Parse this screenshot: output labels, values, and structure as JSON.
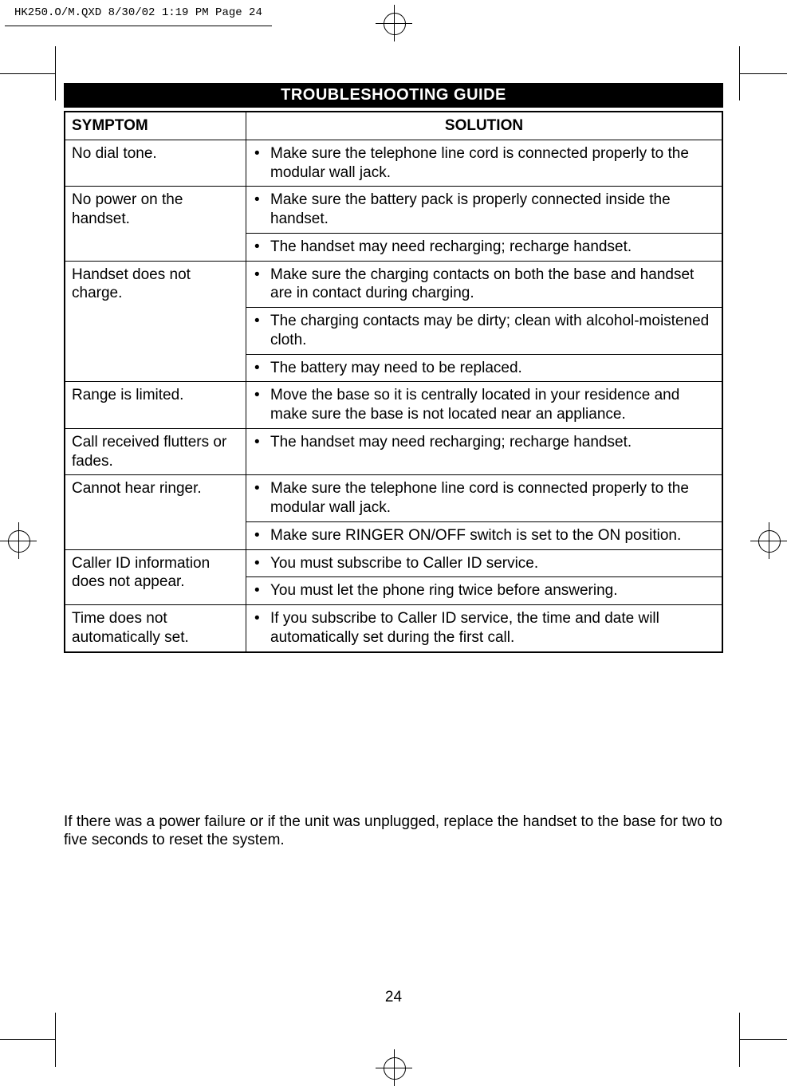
{
  "print_header": "HK250.O/M.QXD  8/30/02  1:19 PM  Page 24",
  "section_title": "TROUBLESHOOTING GUIDE",
  "table": {
    "headers": {
      "symptom": "SYMPTOM",
      "solution": "SOLUTION"
    },
    "rows": [
      {
        "symptom": "No dial tone.",
        "solutions": [
          "Make sure the telephone line cord is connected properly to the modular wall jack."
        ]
      },
      {
        "symptom": "No power on the handset.",
        "solutions": [
          "Make sure the battery pack is properly connected inside the handset.",
          "The handset may need recharging; recharge handset."
        ]
      },
      {
        "symptom": "Handset does not charge.",
        "solutions": [
          "Make sure the charging contacts on both the base and handset are in contact during charging.",
          "The charging contacts may be dirty; clean with alcohol-moistened cloth.",
          "The battery may need to be replaced."
        ]
      },
      {
        "symptom": "Range is limited.",
        "solutions": [
          "Move the base so it is centrally located in your residence and make sure the base is not located near an appliance."
        ]
      },
      {
        "symptom": "Call received flutters or fades.",
        "solutions": [
          "The handset may need recharging; recharge handset."
        ]
      },
      {
        "symptom": "Cannot hear ringer.",
        "solutions": [
          "Make sure the telephone line cord is connected properly to the modular wall jack.",
          "Make sure RINGER ON/OFF switch is set to the ON position."
        ]
      },
      {
        "symptom": "Caller ID information does not appear.",
        "solutions": [
          "You must subscribe to Caller ID service.",
          "You must let the phone ring twice before answering."
        ]
      },
      {
        "symptom": "Time does not automatically set.",
        "solutions": [
          "If you subscribe to Caller ID service, the time and date will automatically set during the first call."
        ]
      }
    ]
  },
  "note": "If there was a power failure or if the unit was unplugged, replace the handset to the base for two to five seconds to reset the system.",
  "page_number": "24"
}
